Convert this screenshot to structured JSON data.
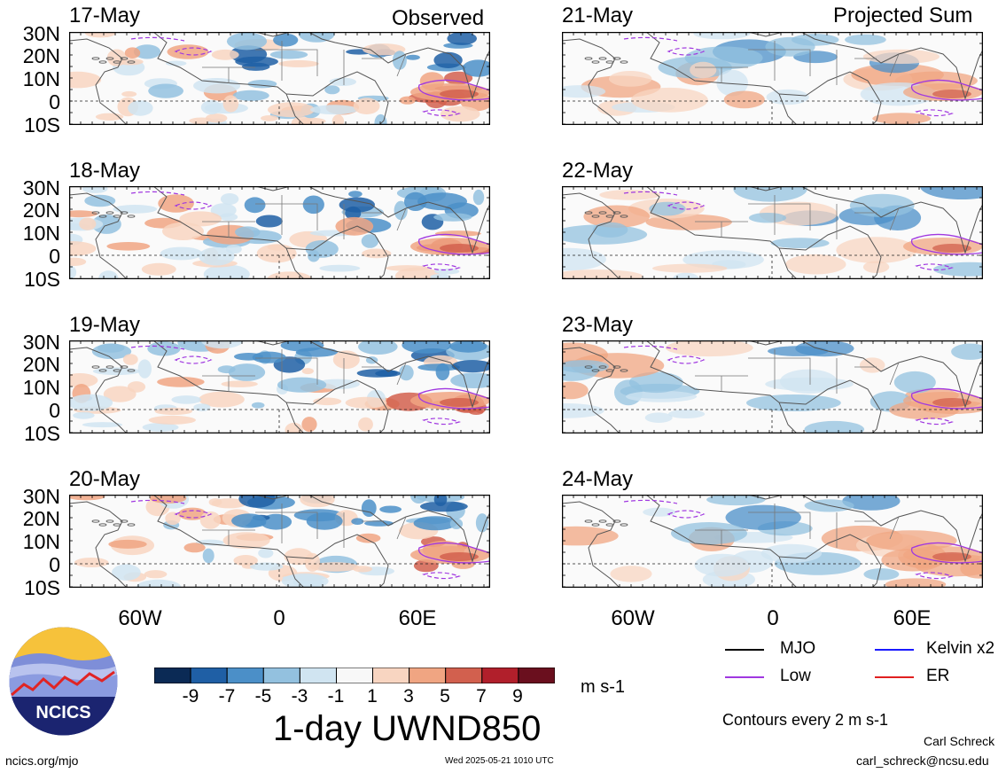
{
  "header": {
    "observed_label": "Observed",
    "projected_label": "Projected Sum"
  },
  "latitude_labels": [
    "30N",
    "20N",
    "10N",
    "0",
    "10S"
  ],
  "longitude_labels": [
    "60W",
    "0",
    "60E"
  ],
  "panels_observed": [
    {
      "date": "17-May"
    },
    {
      "date": "18-May"
    },
    {
      "date": "19-May"
    },
    {
      "date": "20-May"
    }
  ],
  "panels_projected": [
    {
      "date": "21-May"
    },
    {
      "date": "22-May"
    },
    {
      "date": "23-May"
    },
    {
      "date": "24-May"
    }
  ],
  "colorbar": {
    "ticks": [
      "-9",
      "-7",
      "-5",
      "-3",
      "-1",
      "1",
      "3",
      "5",
      "7",
      "9"
    ],
    "colors": [
      "#0b2a55",
      "#1f5fa5",
      "#4b8fc8",
      "#93c1df",
      "#d0e4f1",
      "#f8f8f8",
      "#f8d5c1",
      "#f0a582",
      "#d2604e",
      "#b11f2b",
      "#6a0f1e"
    ],
    "units": "m s-1",
    "title": "1-day UWND850"
  },
  "legend": {
    "items": [
      {
        "label": "MJO",
        "color": "#000000"
      },
      {
        "label": "Kelvin x2",
        "color": "#1a1aff"
      },
      {
        "label": "Low",
        "color": "#a038e0"
      },
      {
        "label": "ER",
        "color": "#e02020"
      }
    ],
    "contour_note": "Contours every 2 m s-1"
  },
  "logo": {
    "text": "NCICS"
  },
  "footer": {
    "url": "ncics.org/mjo",
    "timestamp": "Wed 2025-05-21 1010 UTC",
    "author": "Carl Schreck",
    "email": "carl_schreck@ncsu.edu"
  }
}
